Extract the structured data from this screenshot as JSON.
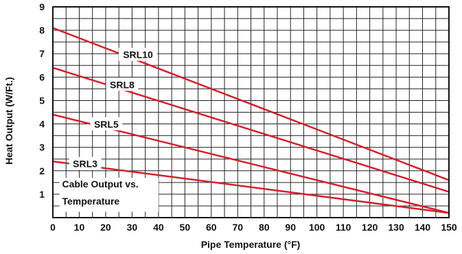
{
  "chart_data": {
    "type": "line",
    "title": "",
    "annotation": [
      "Cable Output vs.",
      "Temperature"
    ],
    "xlabel": "Pipe Temperature (°F)",
    "ylabel": "Heat Output (W/Ft.)",
    "xlim": [
      0,
      150
    ],
    "ylim": [
      0,
      9
    ],
    "x_ticks": [
      0,
      10,
      20,
      30,
      40,
      50,
      60,
      70,
      80,
      90,
      100,
      110,
      120,
      130,
      140,
      150
    ],
    "y_ticks": [
      1,
      2,
      3,
      4,
      5,
      6,
      7,
      8,
      9
    ],
    "grid": true,
    "series_color": "#d41f2b",
    "series": [
      {
        "name": "SRL10",
        "x": [
          0,
          150
        ],
        "values": [
          8.1,
          1.6
        ]
      },
      {
        "name": "SRL8",
        "x": [
          0,
          150
        ],
        "values": [
          6.4,
          1.1
        ]
      },
      {
        "name": "SRL5",
        "x": [
          0,
          150
        ],
        "values": [
          4.4,
          0.2
        ]
      },
      {
        "name": "SRL3",
        "x": [
          0,
          150
        ],
        "values": [
          2.4,
          0.2
        ]
      }
    ]
  }
}
